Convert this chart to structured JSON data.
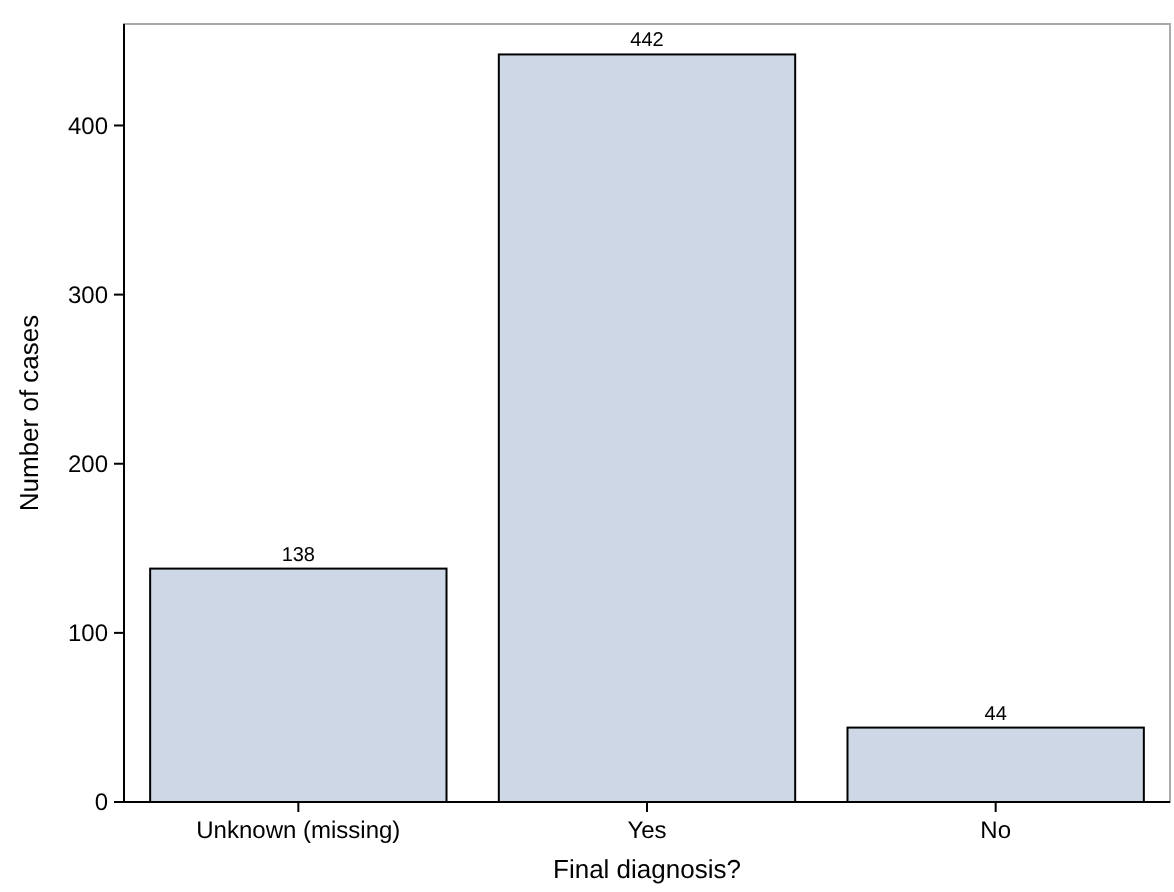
{
  "chart_data": {
    "type": "bar",
    "xlabel": "Final diagnosis?",
    "ylabel": "Number of cases",
    "categories": [
      "Unknown (missing)",
      "Yes",
      "No"
    ],
    "values": [
      138,
      442,
      44
    ],
    "color": "#cdd7e6",
    "data_labels": true,
    "ylim": [
      0,
      460
    ],
    "yticks": [
      0,
      100,
      200,
      300,
      400
    ],
    "grid": false
  }
}
